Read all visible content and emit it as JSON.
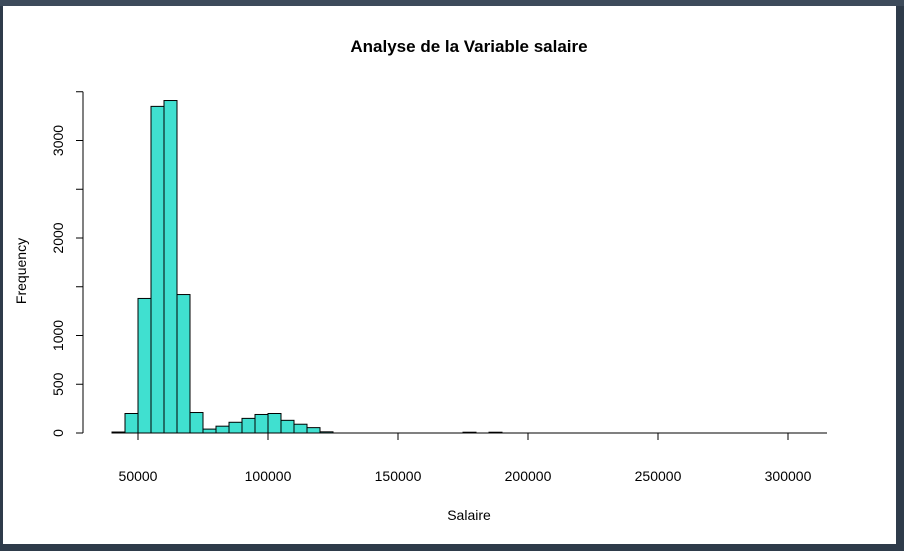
{
  "chart_data": {
    "type": "bar",
    "title": "Analyse de la Variable salaire",
    "xlabel": "Salaire",
    "ylabel": "Frequency",
    "bar_color": "#40e0d0",
    "bin_width": 5000,
    "x_range": [
      40000,
      315000
    ],
    "ylim": [
      0,
      3500
    ],
    "x_ticks": [
      50000,
      100000,
      150000,
      200000,
      250000,
      300000
    ],
    "x_tick_labels": [
      "50000",
      "100000",
      "150000",
      "200000",
      "250000",
      "300000"
    ],
    "y_ticks": [
      0,
      500,
      1000,
      2000,
      3000
    ],
    "y_tick_labels": [
      "0",
      "500",
      "1000",
      "2000",
      "3000"
    ],
    "bins": [
      {
        "start": 40000,
        "end": 45000,
        "count": 10
      },
      {
        "start": 45000,
        "end": 50000,
        "count": 200
      },
      {
        "start": 50000,
        "end": 55000,
        "count": 1380
      },
      {
        "start": 55000,
        "end": 60000,
        "count": 3350
      },
      {
        "start": 60000,
        "end": 65000,
        "count": 3410
      },
      {
        "start": 65000,
        "end": 70000,
        "count": 1420
      },
      {
        "start": 70000,
        "end": 75000,
        "count": 210
      },
      {
        "start": 75000,
        "end": 80000,
        "count": 40
      },
      {
        "start": 80000,
        "end": 85000,
        "count": 70
      },
      {
        "start": 85000,
        "end": 90000,
        "count": 110
      },
      {
        "start": 90000,
        "end": 95000,
        "count": 150
      },
      {
        "start": 95000,
        "end": 100000,
        "count": 190
      },
      {
        "start": 100000,
        "end": 105000,
        "count": 200
      },
      {
        "start": 105000,
        "end": 110000,
        "count": 130
      },
      {
        "start": 110000,
        "end": 115000,
        "count": 90
      },
      {
        "start": 115000,
        "end": 120000,
        "count": 55
      },
      {
        "start": 120000,
        "end": 125000,
        "count": 12
      },
      {
        "start": 175000,
        "end": 180000,
        "count": 8
      },
      {
        "start": 185000,
        "end": 190000,
        "count": 8
      }
    ]
  }
}
